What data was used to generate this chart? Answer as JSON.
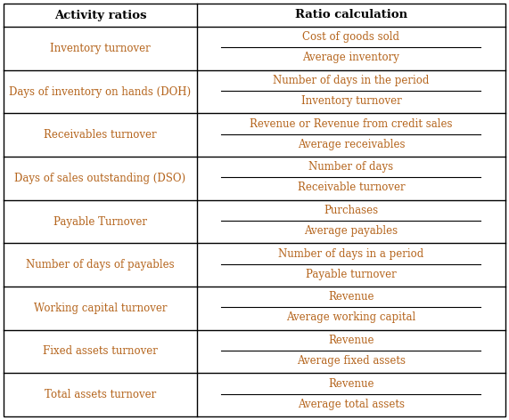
{
  "header": [
    "Activity ratios",
    "Ratio calculation"
  ],
  "rows": [
    {
      "left": "Inventory turnover",
      "numerator": "Cost of goods sold",
      "denominator": "Average inventory"
    },
    {
      "left": "Days of inventory on hands (DOH)",
      "numerator": "Number of days in the period",
      "denominator": "Inventory turnover"
    },
    {
      "left": "Receivables turnover",
      "numerator": "Revenue or Revenue from credit sales",
      "denominator": "Average receivables"
    },
    {
      "left": "Days of sales outstanding (DSO)",
      "numerator": "Number of days",
      "denominator": "Receivable turnover"
    },
    {
      "left": "Payable Turnover",
      "numerator": "Purchases",
      "denominator": "Average payables"
    },
    {
      "left": "Number of days of payables",
      "numerator": "Number of days in a period",
      "denominator": "Payable turnover"
    },
    {
      "left": "Working capital turnover",
      "numerator": "Revenue",
      "denominator": "Average working capital"
    },
    {
      "left": "Fixed assets turnover",
      "numerator": "Revenue",
      "denominator": "Average fixed assets"
    },
    {
      "left": "Total assets turnover",
      "numerator": "Revenue",
      "denominator": "Average total assets"
    }
  ],
  "col_split": 0.385,
  "bg_color": "#ffffff",
  "border_color": "#000000",
  "text_color": "#000000",
  "orange_color": "#b5651d",
  "font_size": 8.5,
  "header_font_size": 9.5,
  "fig_width": 5.71,
  "fig_height": 4.72,
  "dpi": 100
}
